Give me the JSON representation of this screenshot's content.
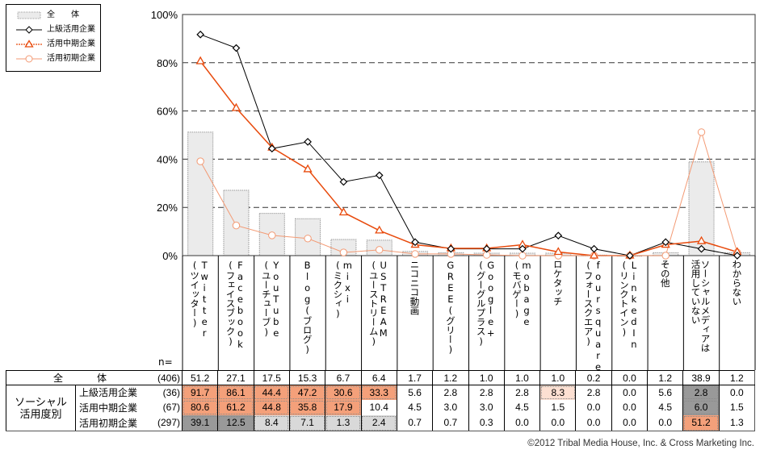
{
  "chart_data": {
    "type": "bar",
    "title": "",
    "xlabel": "",
    "ylabel": "",
    "ylim": [
      0,
      100
    ],
    "yticks": [
      "0%",
      "20%",
      "40%",
      "60%",
      "80%",
      "100%"
    ],
    "grid": true,
    "legend_position": "top-left",
    "categories": [
      [
        "Twitter",
        "(ツイッター)"
      ],
      [
        "Facebook",
        "(フェイスブック)"
      ],
      [
        "YouTube",
        "(ユーチューブ)"
      ],
      [
        "Blog(ブログ)",
        ""
      ],
      [
        "mixi",
        "(ミクシィ)"
      ],
      [
        "USTREAM",
        "(ユーストリーム)"
      ],
      [
        "ニコニコ動画",
        ""
      ],
      [
        "GREE(グリー)",
        ""
      ],
      [
        "Google+",
        "(グーグルプラス)"
      ],
      [
        "mobage",
        "(モバゲー)"
      ],
      [
        "ロケタッチ",
        ""
      ],
      [
        "foursquare",
        "(フォースクエア)"
      ],
      [
        "LinkedIn",
        "(リンクトイン)"
      ],
      [
        "その他",
        ""
      ],
      [
        "ソーシャルメディアは",
        "活用していない"
      ],
      [
        "わからない",
        ""
      ]
    ],
    "series": [
      {
        "name": "全　　体",
        "kind": "bar",
        "n": "(406)",
        "values": [
          51.2,
          27.1,
          17.5,
          15.3,
          6.7,
          6.4,
          1.7,
          1.2,
          1.0,
          1.0,
          1.0,
          0.2,
          0.0,
          1.2,
          38.9,
          1.2
        ]
      },
      {
        "name": "上級活用企業",
        "kind": "line",
        "marker": "diamond",
        "n": "(36)",
        "values": [
          91.7,
          86.1,
          44.4,
          47.2,
          30.6,
          33.3,
          5.6,
          2.8,
          2.8,
          2.8,
          8.3,
          2.8,
          0.0,
          5.6,
          2.8,
          0.0
        ]
      },
      {
        "name": "活用中期企業",
        "kind": "line",
        "marker": "triangle",
        "n": "(67)",
        "values": [
          80.6,
          61.2,
          44.8,
          35.8,
          17.9,
          10.4,
          4.5,
          3.0,
          3.0,
          4.5,
          1.5,
          0.0,
          0.0,
          4.5,
          6.0,
          1.5
        ]
      },
      {
        "name": "活用初期企業",
        "kind": "line",
        "marker": "circle",
        "n": "(297)",
        "values": [
          39.1,
          12.5,
          8.4,
          7.1,
          1.3,
          2.4,
          0.7,
          0.7,
          0.3,
          0.0,
          0.0,
          0.0,
          0.0,
          0.0,
          51.2,
          1.3
        ]
      }
    ],
    "colors": {
      "bar_fill": "#ebebeb",
      "bar_stroke": "#9a9a9a",
      "advanced": "#000000",
      "mid": "#e84a0c",
      "early": "#f39a74",
      "highlight_high": "#f4a07a",
      "highlight_light": "#fde0d2",
      "highlight_gray": "#999999",
      "highlight_lightgray": "#d9d9d9"
    }
  },
  "table": {
    "n_label": "n=",
    "overall_label": [
      "全",
      "体"
    ],
    "group_label": [
      "ソーシャル",
      "活用度別"
    ],
    "rows": [
      {
        "key": "overall",
        "n": "(406)",
        "values": [
          "51.2",
          "27.1",
          "17.5",
          "15.3",
          "6.7",
          "6.4",
          "1.7",
          "1.2",
          "1.0",
          "1.0",
          "1.0",
          "0.2",
          "0.0",
          "1.2",
          "38.9",
          "1.2"
        ],
        "highlight": [
          "",
          "",
          "",
          "",
          "",
          "",
          "",
          "",
          "",
          "",
          "",
          "",
          "",
          "",
          "",
          ""
        ]
      },
      {
        "key": "advanced",
        "label": "上級活用企業",
        "n": "(36)",
        "values": [
          "91.7",
          "86.1",
          "44.4",
          "47.2",
          "30.6",
          "33.3",
          "5.6",
          "2.8",
          "2.8",
          "2.8",
          "8.3",
          "2.8",
          "0.0",
          "5.6",
          "2.8",
          "0.0"
        ],
        "highlight": [
          "high",
          "high",
          "high",
          "high",
          "high",
          "high",
          "",
          "",
          "",
          "",
          "light",
          "",
          "",
          "",
          "gray",
          ""
        ]
      },
      {
        "key": "mid",
        "label": "活用中期企業",
        "n": "(67)",
        "values": [
          "80.6",
          "61.2",
          "44.8",
          "35.8",
          "17.9",
          "10.4",
          "4.5",
          "3.0",
          "3.0",
          "4.5",
          "1.5",
          "0.0",
          "0.0",
          "4.5",
          "6.0",
          "1.5"
        ],
        "highlight": [
          "high",
          "high",
          "high",
          "high",
          "high",
          "",
          "",
          "",
          "",
          "",
          "",
          "",
          "",
          "",
          "gray",
          ""
        ]
      },
      {
        "key": "early",
        "label": "活用初期企業",
        "n": "(297)",
        "values": [
          "39.1",
          "12.5",
          "8.4",
          "7.1",
          "1.3",
          "2.4",
          "0.7",
          "0.7",
          "0.3",
          "0.0",
          "0.0",
          "0.0",
          "0.0",
          "0.0",
          "51.2",
          "1.3"
        ],
        "highlight": [
          "gray",
          "gray",
          "lightgray",
          "lightgray",
          "lightgray",
          "lightgray",
          "",
          "",
          "",
          "",
          "",
          "",
          "",
          "",
          "high",
          ""
        ]
      }
    ]
  },
  "copyright": "©2012 Tribal Media House, Inc. & Cross Marketing Inc."
}
